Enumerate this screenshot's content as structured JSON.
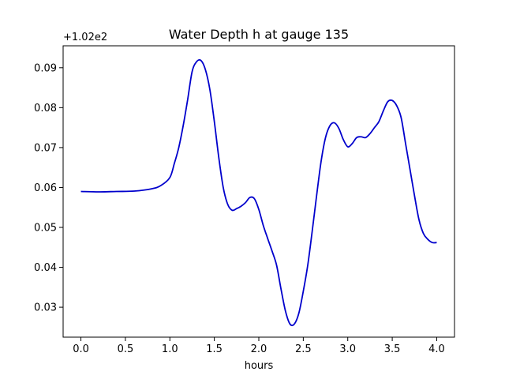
{
  "chart_data": {
    "type": "line",
    "title": "Water Depth h at gauge 135",
    "xlabel": "hours",
    "ylabel": "",
    "y_offset_label": "+1.02e2",
    "xlim": [
      -0.2,
      4.2
    ],
    "ylim": [
      0.0225,
      0.0955
    ],
    "x_ticks": [
      0.0,
      0.5,
      1.0,
      1.5,
      2.0,
      2.5,
      3.0,
      3.5,
      4.0
    ],
    "x_tick_labels": [
      "0.0",
      "0.5",
      "1.0",
      "1.5",
      "2.0",
      "2.5",
      "3.0",
      "3.5",
      "4.0"
    ],
    "y_ticks": [
      0.03,
      0.04,
      0.05,
      0.06,
      0.07,
      0.08,
      0.09
    ],
    "y_tick_labels": [
      "0.03",
      "0.04",
      "0.05",
      "0.06",
      "0.07",
      "0.08",
      "0.09"
    ],
    "grid": false,
    "series": [
      {
        "color": "#0000cc",
        "x": [
          0.0,
          0.2,
          0.4,
          0.6,
          0.8,
          0.9,
          1.0,
          1.05,
          1.1,
          1.15,
          1.2,
          1.25,
          1.3,
          1.35,
          1.4,
          1.45,
          1.5,
          1.55,
          1.6,
          1.65,
          1.7,
          1.75,
          1.8,
          1.85,
          1.9,
          1.95,
          2.0,
          2.05,
          2.1,
          2.15,
          2.2,
          2.25,
          2.3,
          2.35,
          2.4,
          2.45,
          2.5,
          2.55,
          2.6,
          2.65,
          2.7,
          2.75,
          2.8,
          2.85,
          2.9,
          2.95,
          3.0,
          3.05,
          3.1,
          3.15,
          3.2,
          3.25,
          3.3,
          3.35,
          3.4,
          3.45,
          3.5,
          3.55,
          3.6,
          3.65,
          3.7,
          3.75,
          3.8,
          3.85,
          3.9,
          3.95,
          4.0
        ],
        "y": [
          0.059,
          0.0589,
          0.059,
          0.0591,
          0.0597,
          0.0605,
          0.0625,
          0.066,
          0.07,
          0.0755,
          0.082,
          0.089,
          0.0915,
          0.0918,
          0.0895,
          0.0845,
          0.0765,
          0.0675,
          0.06,
          0.0558,
          0.0543,
          0.0547,
          0.0553,
          0.0562,
          0.0575,
          0.0572,
          0.0545,
          0.0505,
          0.0472,
          0.044,
          0.0405,
          0.0345,
          0.029,
          0.0258,
          0.0258,
          0.0285,
          0.034,
          0.0405,
          0.049,
          0.058,
          0.0665,
          0.0725,
          0.0755,
          0.0762,
          0.0748,
          0.072,
          0.0702,
          0.071,
          0.0725,
          0.0727,
          0.0725,
          0.0735,
          0.075,
          0.0765,
          0.0792,
          0.0815,
          0.0818,
          0.0805,
          0.0775,
          0.071,
          0.0645,
          0.058,
          0.052,
          0.0485,
          0.047,
          0.0462,
          0.0462
        ]
      }
    ]
  }
}
